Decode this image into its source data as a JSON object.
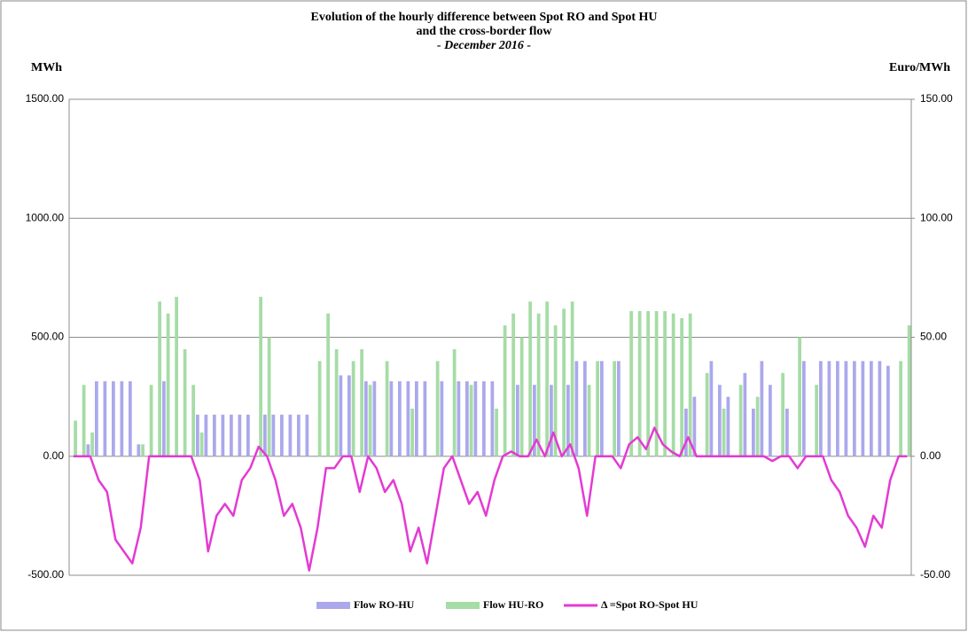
{
  "chart_data": {
    "type": "bar-line",
    "title": [
      "Evolution of the hourly difference between Spot RO and Spot HU",
      "and the cross-border flow"
    ],
    "subtitle": "- December 2016 -",
    "y_label": "MWh",
    "y2_label": "Euro/MWh",
    "categories": [
      null,
      null,
      null,
      null,
      null,
      null,
      null,
      null,
      null,
      null,
      null,
      null,
      null,
      null,
      null,
      null,
      null,
      null,
      null,
      null,
      null,
      null,
      null,
      null,
      null,
      null,
      null,
      null,
      null,
      null,
      null,
      null,
      null,
      null,
      null,
      null,
      null,
      null,
      null,
      null,
      null,
      null,
      null,
      null,
      null,
      null,
      null,
      null,
      null,
      null,
      null,
      null,
      null,
      null,
      null,
      null,
      null,
      null,
      null,
      null,
      null,
      null,
      null,
      null,
      null,
      null,
      null,
      null,
      null,
      null,
      null,
      null,
      null,
      null,
      null,
      null,
      null,
      null,
      null,
      null,
      null,
      null,
      null,
      null,
      null,
      null,
      null,
      null,
      null,
      null,
      null,
      null,
      null,
      null,
      null,
      null,
      null,
      null,
      null,
      null
    ],
    "ylim": [
      -500,
      1500
    ],
    "yticks": [
      {
        "value": -500,
        "label": "-500.00"
      },
      {
        "value": 0,
        "label": "0.00"
      },
      {
        "value": 500,
        "label": "500.00"
      },
      {
        "value": 1000,
        "label": "1000.00"
      },
      {
        "value": 1500,
        "label": "1500.00"
      }
    ],
    "y2lim": [
      -50,
      150
    ],
    "y2ticks": [
      {
        "value": -50,
        "label": "-50.00"
      },
      {
        "value": 0,
        "label": "0.00"
      },
      {
        "value": 50,
        "label": "50.00"
      },
      {
        "value": 100,
        "label": "100.00"
      },
      {
        "value": 150,
        "label": "150.00"
      }
    ],
    "grid": true,
    "legend": "bottom",
    "series": [
      {
        "name": "Flow RO-HU",
        "color": "#aba8ec",
        "kind": "bar",
        "values": [
          0,
          0,
          50,
          315,
          315,
          315,
          315,
          315,
          50,
          0,
          0,
          315,
          0,
          0,
          0,
          175,
          175,
          175,
          175,
          175,
          175,
          175,
          0,
          175,
          175,
          175,
          175,
          175,
          175,
          0,
          0,
          0,
          340,
          340,
          0,
          315,
          315,
          0,
          315,
          315,
          315,
          315,
          315,
          0,
          315,
          0,
          315,
          315,
          315,
          315,
          315,
          0,
          0,
          300,
          0,
          300,
          0,
          300,
          0,
          300,
          400,
          400,
          0,
          400,
          0,
          400,
          0,
          0,
          0,
          0,
          0,
          0,
          0,
          200,
          250,
          0,
          400,
          300,
          250,
          0,
          350,
          200,
          400,
          300,
          0,
          200,
          0,
          400,
          0,
          400,
          400,
          400,
          400,
          400,
          400,
          400,
          400,
          380,
          0,
          0
        ]
      },
      {
        "name": "Flow HU-RO",
        "color": "#a6dca6",
        "kind": "bar",
        "values": [
          150,
          300,
          100,
          0,
          0,
          0,
          0,
          0,
          50,
          300,
          650,
          600,
          670,
          450,
          300,
          100,
          0,
          0,
          0,
          0,
          0,
          0,
          670,
          500,
          0,
          0,
          0,
          0,
          0,
          400,
          600,
          450,
          0,
          400,
          450,
          300,
          0,
          400,
          0,
          0,
          200,
          0,
          0,
          400,
          0,
          450,
          0,
          300,
          0,
          0,
          200,
          550,
          600,
          500,
          650,
          600,
          650,
          550,
          620,
          650,
          0,
          300,
          400,
          0,
          400,
          0,
          610,
          610,
          610,
          610,
          610,
          600,
          580,
          600,
          0,
          350,
          0,
          200,
          0,
          300,
          0,
          250,
          0,
          0,
          350,
          0,
          500,
          0,
          300,
          0,
          0,
          0,
          0,
          0,
          0,
          0,
          0,
          0,
          400,
          550
        ]
      },
      {
        "name": "Δ =Spot RO-Spot HU",
        "color": "#e43ad2",
        "kind": "line",
        "axis": "y2",
        "values": [
          0,
          0,
          0,
          -10,
          -15,
          -35,
          -40,
          -45,
          -30,
          0,
          0,
          0,
          0,
          0,
          0,
          -10,
          -40,
          -25,
          -20,
          -25,
          -10,
          -5,
          4,
          0,
          -10,
          -25,
          -20,
          -30,
          -48,
          -30,
          -5,
          -5,
          0,
          0,
          -15,
          0,
          -5,
          -15,
          -10,
          -20,
          -40,
          -30,
          -45,
          -25,
          -5,
          0,
          -10,
          -20,
          -15,
          -25,
          -10,
          0,
          2,
          0,
          0,
          7,
          0,
          10,
          0,
          5,
          -5,
          -25,
          0,
          0,
          0,
          -5,
          5,
          8,
          3,
          12,
          5,
          2,
          0,
          8,
          0,
          0,
          0,
          0,
          0,
          0,
          0,
          0,
          0,
          -2,
          0,
          0,
          -5,
          0,
          0,
          0,
          -10,
          -15,
          -25,
          -30,
          -38,
          -25,
          -30,
          -10,
          0,
          0
        ]
      }
    ]
  }
}
